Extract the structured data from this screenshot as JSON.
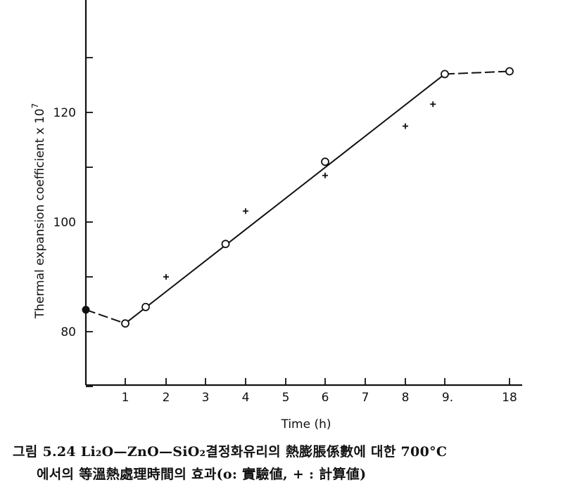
{
  "chart_data": {
    "type": "line",
    "xlabel": "Time (h)",
    "ylabel": "Thermal expansion coefficient x 10",
    "ylabel_exponent": "7",
    "x_ticks": [
      "1",
      "2",
      "3",
      "4",
      "5",
      "6",
      "7",
      "8",
      "9.",
      "18"
    ],
    "y_ticks": [
      80,
      100,
      120
    ],
    "ylim": [
      70,
      140
    ],
    "grid": false,
    "legend": "none",
    "series": [
      {
        "marker": "open-circle",
        "points": [
          [
            1,
            81.5
          ],
          [
            1.5,
            84.5
          ],
          [
            3.5,
            96
          ],
          [
            6,
            111
          ],
          [
            9,
            127
          ],
          [
            18,
            127.5
          ]
        ]
      },
      {
        "marker": "plus",
        "points": [
          [
            2,
            90
          ],
          [
            4,
            102
          ],
          [
            6,
            108.5
          ],
          [
            8,
            117.5
          ],
          [
            8.7,
            121.5
          ]
        ]
      },
      {
        "marker": "filled-circle",
        "points": [
          [
            0,
            84
          ]
        ]
      }
    ],
    "fitted_line": {
      "style": "solid",
      "points": [
        [
          1,
          81.5
        ],
        [
          9,
          127
        ]
      ]
    },
    "dashed_segments": [
      [
        [
          0,
          84
        ],
        [
          1,
          81.5
        ]
      ],
      [
        [
          9,
          127
        ],
        [
          18,
          127.5
        ]
      ]
    ]
  },
  "caption": {
    "line1": "그림 5.24  Li₂O—ZnO—SiO₂결정화유리의   熱膨脹係數에  대한  700°C",
    "line2": "에서의  等溫熱處理時間의  효과(o: 實驗値,  + : 計算値)"
  }
}
